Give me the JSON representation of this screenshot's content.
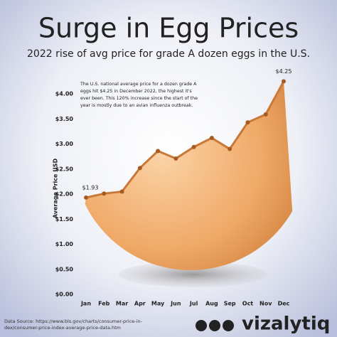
{
  "chart_data": {
    "type": "line",
    "title": "Surge in Egg Prices",
    "subtitle": "2022 rise of avg price for grade A dozen eggs in the U.S.",
    "y_label": "Average Price USD",
    "annotation": [
      "The U.S. national average price for a dozen grade A",
      "eggs hit $4.25 in December 2022, the highest it's",
      "ever been. This 120% increase since the start of the",
      "year is mostly due to an avian influenza outbreak."
    ],
    "categories": [
      "Jan",
      "Feb",
      "Mar",
      "Apr",
      "May",
      "Jun",
      "Jul",
      "Aug",
      "Sep",
      "Oct",
      "Nov",
      "Dec"
    ],
    "series": [
      {
        "name": "Average price",
        "color": "#c8793a",
        "values": [
          1.93,
          2.01,
          2.05,
          2.52,
          2.86,
          2.71,
          2.94,
          3.12,
          2.9,
          3.43,
          3.59,
          4.25
        ],
        "value_labels": [
          "$1.93",
          null,
          null,
          null,
          null,
          null,
          null,
          null,
          null,
          null,
          null,
          "$4.25"
        ]
      }
    ],
    "ylim": [
      0,
      4.45
    ],
    "yticks": [
      {
        "value": 0,
        "label": "$0.00"
      },
      {
        "value": 0.5,
        "label": "$0.50"
      },
      {
        "value": 1,
        "label": "$1.00"
      },
      {
        "value": 1.5,
        "label": "$1.50"
      },
      {
        "value": 2,
        "label": "$2.00"
      },
      {
        "value": 2.5,
        "label": "$2.50"
      },
      {
        "value": 3,
        "label": "$3.00"
      },
      {
        "value": 3.5,
        "label": "$3.50"
      },
      {
        "value": 4,
        "label": "$4.00"
      }
    ],
    "source": [
      "Data Source: https://www.bls.gov/charts/consumer-price-in-",
      "dex/consumer-price-index-average-price-data.htm"
    ],
    "brand": "vizalytiq"
  }
}
